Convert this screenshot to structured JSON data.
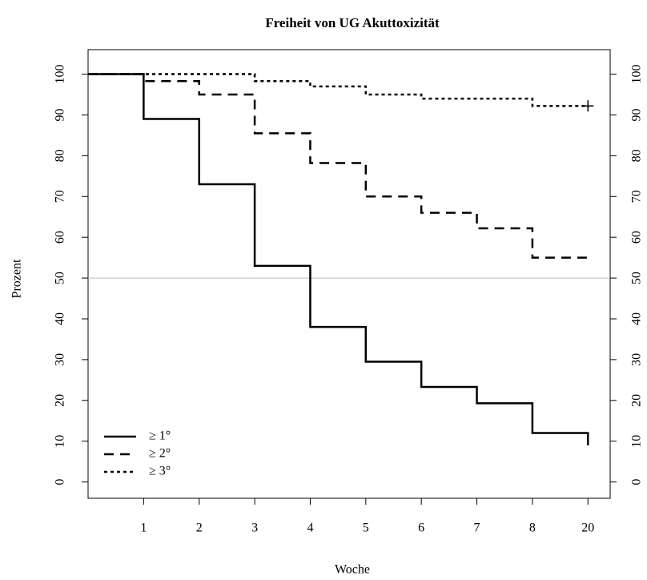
{
  "chart_data": {
    "type": "step",
    "title": "Freiheit von UG Akuttoxizität",
    "x_label": "Woche",
    "y_label": "Prozent",
    "categories": [
      null,
      "1",
      "2",
      "3",
      "4",
      "5",
      "6",
      "7",
      "8",
      "20"
    ],
    "xlim": [
      0,
      9.4
    ],
    "ylim": [
      -4,
      106
    ],
    "yticks": [
      0,
      10,
      20,
      30,
      40,
      50,
      60,
      70,
      80,
      90,
      100
    ],
    "y2lim": [
      -4,
      106
    ],
    "y2ticks": [
      0,
      10,
      20,
      30,
      40,
      50,
      60,
      70,
      80,
      90,
      100
    ],
    "hline": 50,
    "legend": "bottom-left",
    "series": [
      {
        "name": "≥ 1°",
        "color": "#000000",
        "dash": "solid",
        "values": [
          100,
          89,
          73,
          53,
          38,
          29.5,
          23.3,
          19.3,
          12,
          9
        ]
      },
      {
        "name": "≥ 2°",
        "color": "#000000",
        "dash": "dashed",
        "values": [
          100,
          98.3,
          95,
          85.5,
          78.2,
          70,
          66,
          62.2,
          55,
          55
        ]
      },
      {
        "name": "≥ 3°",
        "color": "#000000",
        "dash": "dotted",
        "values": [
          100,
          100,
          100,
          98.3,
          97,
          95,
          94,
          94,
          92.2,
          92.2
        ],
        "censored_end": true
      }
    ]
  }
}
